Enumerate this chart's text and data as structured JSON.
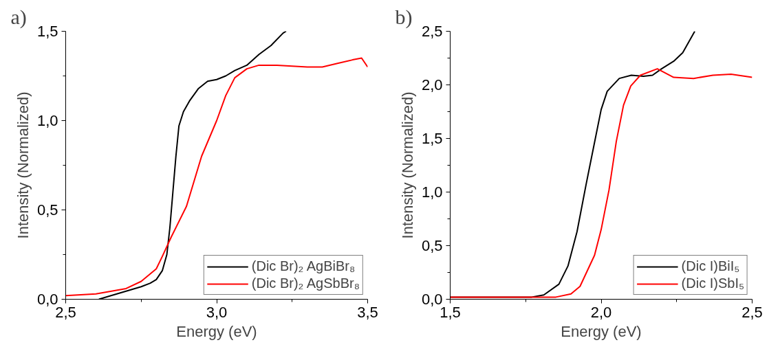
{
  "chart_data": [
    {
      "type": "line",
      "title": "a)",
      "xlabel": "Energy (eV)",
      "ylabel": "Intensity (Normalized)",
      "xlim": [
        2.5,
        3.5
      ],
      "ylim": [
        0,
        1.5
      ],
      "xticks": [
        {
          "value": 2.5,
          "label": "2,5"
        },
        {
          "value": 2.75,
          "label": null
        },
        {
          "value": 3.0,
          "label": "3,0"
        },
        {
          "value": 3.25,
          "label": null
        },
        {
          "value": 3.5,
          "label": "3,5"
        }
      ],
      "yticks": [
        {
          "value": 0,
          "label": "0,0"
        },
        {
          "value": 0.25,
          "label": null
        },
        {
          "value": 0.5,
          "label": "0,5"
        },
        {
          "value": 0.75,
          "label": null
        },
        {
          "value": 1.0,
          "label": "1,0"
        },
        {
          "value": 1.25,
          "label": null
        },
        {
          "value": 1.5,
          "label": "1,5"
        }
      ],
      "grid": false,
      "legend": "bottom right",
      "marker": "none",
      "line_style": "solid",
      "series": [
        {
          "name": "(Dic Br)₂ AgBiBr₈",
          "color": "#000000",
          "x": [
            2.61,
            2.65,
            2.7,
            2.75,
            2.78,
            2.8,
            2.82,
            2.835,
            2.845,
            2.855,
            2.865,
            2.875,
            2.89,
            2.91,
            2.94,
            2.97,
            3.0,
            3.03,
            3.06,
            3.1,
            3.14,
            3.18,
            3.22,
            3.23
          ],
          "values": [
            0,
            0.02,
            0.045,
            0.07,
            0.09,
            0.11,
            0.16,
            0.25,
            0.4,
            0.6,
            0.8,
            0.97,
            1.05,
            1.11,
            1.18,
            1.22,
            1.23,
            1.25,
            1.28,
            1.31,
            1.37,
            1.42,
            1.49,
            1.5
          ]
        },
        {
          "name": "(Dic Br)₂ AgSbBr₈",
          "color": "#ff0000",
          "x": [
            2.5,
            2.6,
            2.7,
            2.75,
            2.8,
            2.82,
            2.85,
            2.9,
            2.95,
            3.0,
            3.03,
            3.06,
            3.1,
            3.14,
            3.2,
            3.3,
            3.35,
            3.4,
            3.45,
            3.48,
            3.5
          ],
          "values": [
            0.02,
            0.03,
            0.06,
            0.1,
            0.17,
            0.24,
            0.35,
            0.52,
            0.8,
            1.0,
            1.14,
            1.24,
            1.29,
            1.31,
            1.31,
            1.3,
            1.3,
            1.32,
            1.34,
            1.35,
            1.3
          ]
        }
      ]
    },
    {
      "type": "line",
      "title": "b)",
      "xlabel": "Energy (eV)",
      "ylabel": "Intensity (Normalized)",
      "xlim": [
        1.5,
        2.5
      ],
      "ylim": [
        0,
        2.5
      ],
      "xticks": [
        {
          "value": 1.5,
          "label": "1,5"
        },
        {
          "value": 1.75,
          "label": null
        },
        {
          "value": 2.0,
          "label": "2,0"
        },
        {
          "value": 2.25,
          "label": null
        },
        {
          "value": 2.5,
          "label": "2,5"
        }
      ],
      "yticks": [
        {
          "value": 0,
          "label": "0,0"
        },
        {
          "value": 0.25,
          "label": null
        },
        {
          "value": 0.5,
          "label": "0,5"
        },
        {
          "value": 0.75,
          "label": null
        },
        {
          "value": 1.0,
          "label": "1,0"
        },
        {
          "value": 1.25,
          "label": null
        },
        {
          "value": 1.5,
          "label": "1,5"
        },
        {
          "value": 1.75,
          "label": null
        },
        {
          "value": 2.0,
          "label": "2,0"
        },
        {
          "value": 2.25,
          "label": null
        },
        {
          "value": 2.5,
          "label": "2,5"
        }
      ],
      "grid": false,
      "legend": "bottom right",
      "marker": "none",
      "line_style": "solid",
      "series": [
        {
          "name": "(Dic I)BiI₅",
          "color": "#000000",
          "x": [
            1.5,
            1.77,
            1.81,
            1.86,
            1.89,
            1.92,
            1.95,
            1.98,
            2.0,
            2.02,
            2.06,
            2.1,
            2.14,
            2.17,
            2.2,
            2.24,
            2.27,
            2.31
          ],
          "values": [
            0.02,
            0.02,
            0.04,
            0.14,
            0.31,
            0.63,
            1.07,
            1.49,
            1.77,
            1.94,
            2.06,
            2.09,
            2.08,
            2.09,
            2.15,
            2.22,
            2.3,
            2.5
          ]
        },
        {
          "name": "(Dic I)SbI₅",
          "color": "#ff0000",
          "x": [
            1.5,
            1.85,
            1.9,
            1.93,
            1.978,
            2.0,
            2.026,
            2.05,
            2.074,
            2.098,
            2.13,
            2.186,
            2.24,
            2.306,
            2.37,
            2.43,
            2.5
          ],
          "values": [
            0.02,
            0.02,
            0.05,
            0.12,
            0.41,
            0.65,
            1.02,
            1.47,
            1.81,
            1.99,
            2.09,
            2.15,
            2.07,
            2.06,
            2.09,
            2.1,
            2.07
          ]
        }
      ]
    }
  ]
}
